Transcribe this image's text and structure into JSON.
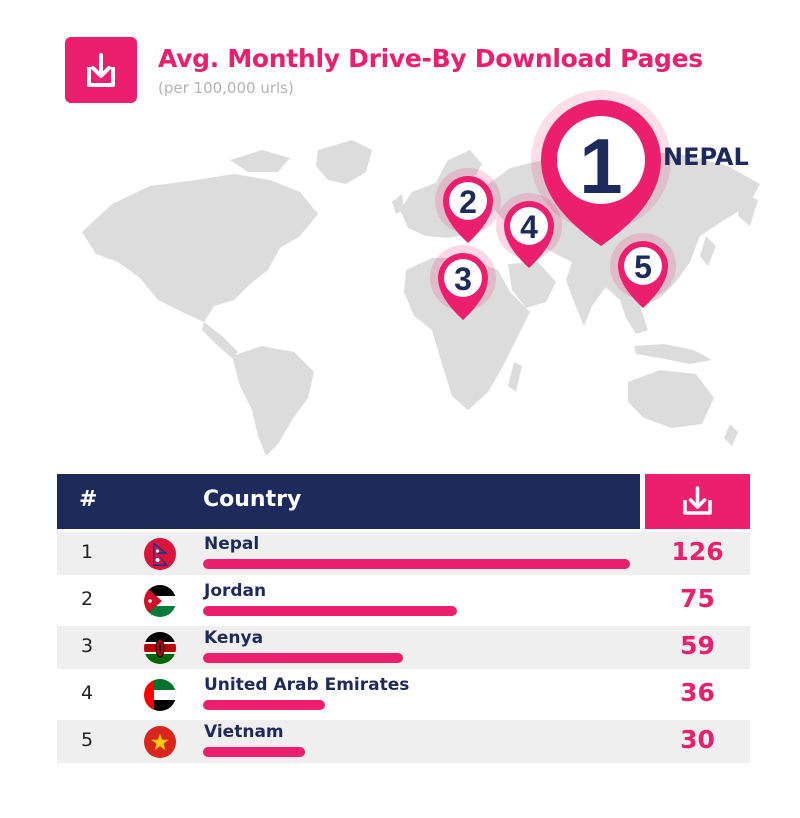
{
  "header": {
    "icon": "download-icon",
    "title": "Avg. Monthly Drive-By Download Pages",
    "subtitle": "(per 100,000 urls)"
  },
  "map": {
    "top_label": "NEPAL",
    "pins": [
      "1",
      "2",
      "3",
      "4",
      "5"
    ]
  },
  "table": {
    "col_rank": "#",
    "col_country": "Country",
    "col_value_icon": "download-icon"
  },
  "colors": {
    "accent": "#ec1f6e",
    "navy": "#1d2b5c",
    "map": "#dcdcdc",
    "row_shade": "#efefef"
  },
  "chart_data": {
    "type": "bar",
    "title": "Avg. Monthly Drive-By Download Pages",
    "subtitle": "(per 100,000 urls)",
    "categories": [
      "Nepal",
      "Jordan",
      "Kenya",
      "United Arab Emirates",
      "Vietnam"
    ],
    "ranks": [
      "1",
      "2",
      "3",
      "4",
      "5"
    ],
    "values": [
      126,
      75,
      59,
      36,
      30
    ],
    "flags": [
      "nepal-flag-icon",
      "jordan-flag-icon",
      "kenya-flag-icon",
      "uae-flag-icon",
      "vietnam-flag-icon"
    ]
  }
}
